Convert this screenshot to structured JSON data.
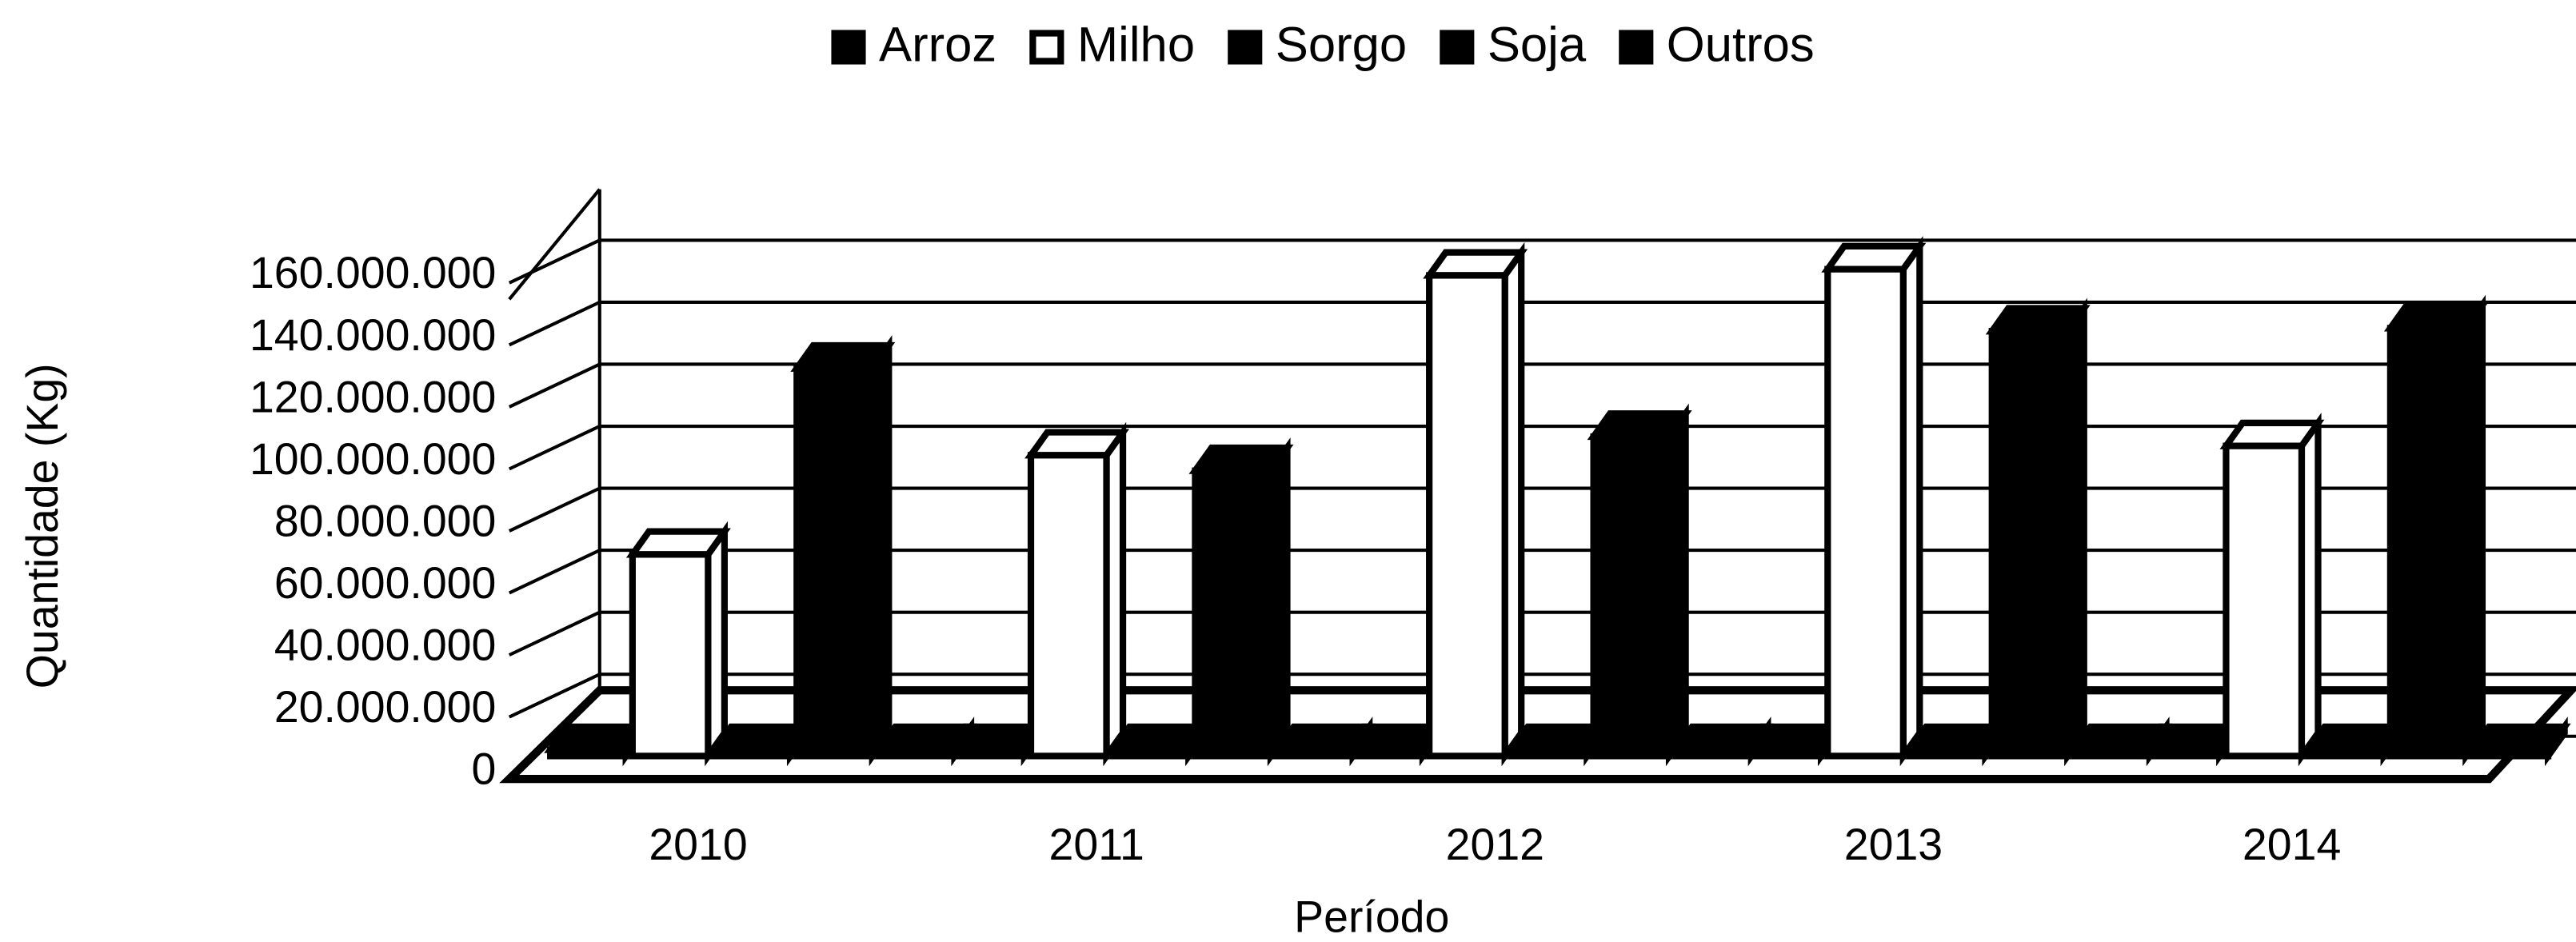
{
  "chart_data": {
    "type": "bar3d",
    "categories": [
      "2010",
      "2011",
      "2012",
      "2013",
      "2014"
    ],
    "series": [
      {
        "name": "Arroz",
        "color": "#000000",
        "values": [
          2000000,
          2000000,
          2000000,
          2000000,
          2000000
        ]
      },
      {
        "name": "Milho",
        "color": "#ffffff",
        "values": [
          65000000,
          97000000,
          155000000,
          157000000,
          100000000
        ]
      },
      {
        "name": "Sorgo",
        "color": "#000000",
        "values": [
          2000000,
          2000000,
          2000000,
          2000000,
          2000000
        ]
      },
      {
        "name": "Soja",
        "color": "#000000",
        "values": [
          125000000,
          92000000,
          103000000,
          137000000,
          138000000
        ]
      },
      {
        "name": "Outros",
        "color": "#000000",
        "values": [
          2000000,
          2000000,
          2000000,
          2000000,
          2000000
        ]
      }
    ],
    "ylim": [
      0,
      160000000
    ],
    "yticks": [
      0,
      {
        "value": 20000000,
        "label": "20.000.000"
      },
      {
        "value": 40000000,
        "label": "40.000.000"
      },
      {
        "value": 60000000,
        "label": "60.000.000"
      },
      {
        "value": 80000000,
        "label": "80.000.000"
      },
      {
        "value": 100000000,
        "label": "100.000.000"
      },
      {
        "value": 120000000,
        "label": "120.000.000"
      },
      {
        "value": 140000000,
        "label": "140.000.000"
      },
      {
        "value": 160000000,
        "label": "160.000.000"
      }
    ],
    "ylabel": "Quantidade (Kg)",
    "xlabel": "Período",
    "grid": true,
    "legend": "top"
  }
}
